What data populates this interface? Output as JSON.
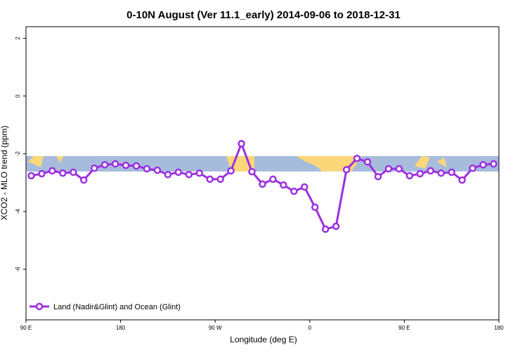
{
  "chart_data": {
    "type": "line",
    "title": "0-10N August (Ver 11.1_early)   2014-09-06 to 2018-12-31",
    "xlabel": "Longitude (deg E)",
    "ylabel": "XCO2 - MLO trend (ppm)",
    "x": [
      95,
      105,
      115,
      125,
      135,
      145,
      155,
      165,
      175,
      185,
      195,
      205,
      215,
      225,
      235,
      245,
      255,
      265,
      275,
      285,
      295,
      305,
      315,
      325,
      335,
      345,
      355,
      365,
      375,
      385,
      395,
      405,
      415,
      425,
      435,
      445,
      455,
      465,
      475,
      485,
      495,
      505,
      515,
      525,
      535
    ],
    "series": [
      {
        "name": "Land (Nadir&Glint) and Ocean (Glint)",
        "color": "#9b30e0",
        "values": [
          -2.76,
          -2.69,
          -2.59,
          -2.67,
          -2.64,
          -2.91,
          -2.5,
          -2.38,
          -2.35,
          -2.4,
          -2.42,
          -2.52,
          -2.57,
          -2.72,
          -2.64,
          -2.72,
          -2.67,
          -2.88,
          -2.88,
          -2.59,
          -1.65,
          -2.62,
          -3.05,
          -2.88,
          -3.08,
          -3.3,
          -3.15,
          -3.85,
          -4.61,
          -4.51,
          -2.55,
          -2.16,
          -2.28,
          -2.79,
          -2.52,
          -2.52,
          -2.76,
          -2.69,
          -2.59,
          -2.67,
          -2.64,
          -2.91,
          -2.5,
          -2.38,
          -2.35
        ]
      }
    ],
    "xlim": [
      90,
      540
    ],
    "xticks": [
      {
        "value": 90,
        "label": "90 E"
      },
      {
        "value": 180,
        "label": "180"
      },
      {
        "value": 270,
        "label": "90 W"
      },
      {
        "value": 360,
        "label": "0"
      },
      {
        "value": 450,
        "label": "90 E"
      },
      {
        "value": 540,
        "label": "180"
      }
    ],
    "ylim": [
      -7.75,
      2.4
    ],
    "yticks": [
      -6,
      -4,
      -2,
      0,
      2
    ],
    "legend": "lower left"
  }
}
